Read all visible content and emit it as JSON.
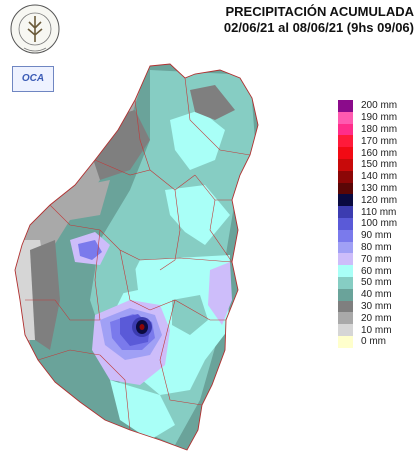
{
  "header": {
    "title": "PRECIPITACIÓN ACUMULADA",
    "subtitle": "02/06/21 al 08/06/21 (9hs 09/06)"
  },
  "logos": {
    "bolsa_text": "BOLSA DE CEREALES DE ENTRE RIOS",
    "oca_text": "OCA"
  },
  "legend": [
    {
      "label": "200 mm",
      "color": "#8b0b8b"
    },
    {
      "label": "190 mm",
      "color": "#ff5ab0"
    },
    {
      "label": "180 mm",
      "color": "#ff2d8a"
    },
    {
      "label": "170 mm",
      "color": "#ff1a3a"
    },
    {
      "label": "160 mm",
      "color": "#f20a14"
    },
    {
      "label": "150 mm",
      "color": "#c80a0a"
    },
    {
      "label": "140 mm",
      "color": "#8c0606"
    },
    {
      "label": "130 mm",
      "color": "#5a0606"
    },
    {
      "label": "120 mm",
      "color": "#0a0a40"
    },
    {
      "label": "110 mm",
      "color": "#3c3cb0"
    },
    {
      "label": "100 mm",
      "color": "#5a5ad8"
    },
    {
      "label": "90 mm",
      "color": "#7a7aec"
    },
    {
      "label": "80 mm",
      "color": "#a0a0f5"
    },
    {
      "label": "70 mm",
      "color": "#cdbdfa"
    },
    {
      "label": "60 mm",
      "color": "#a9fff7"
    },
    {
      "label": "50 mm",
      "color": "#86cdc3"
    },
    {
      "label": "40 mm",
      "color": "#6aa39a"
    },
    {
      "label": "30 mm",
      "color": "#7f7f7f"
    },
    {
      "label": "20 mm",
      "color": "#a9a9a9"
    },
    {
      "label": "10 mm",
      "color": "#d6d6d6"
    },
    {
      "label": "0 mm",
      "color": "#ffffcc"
    }
  ]
}
